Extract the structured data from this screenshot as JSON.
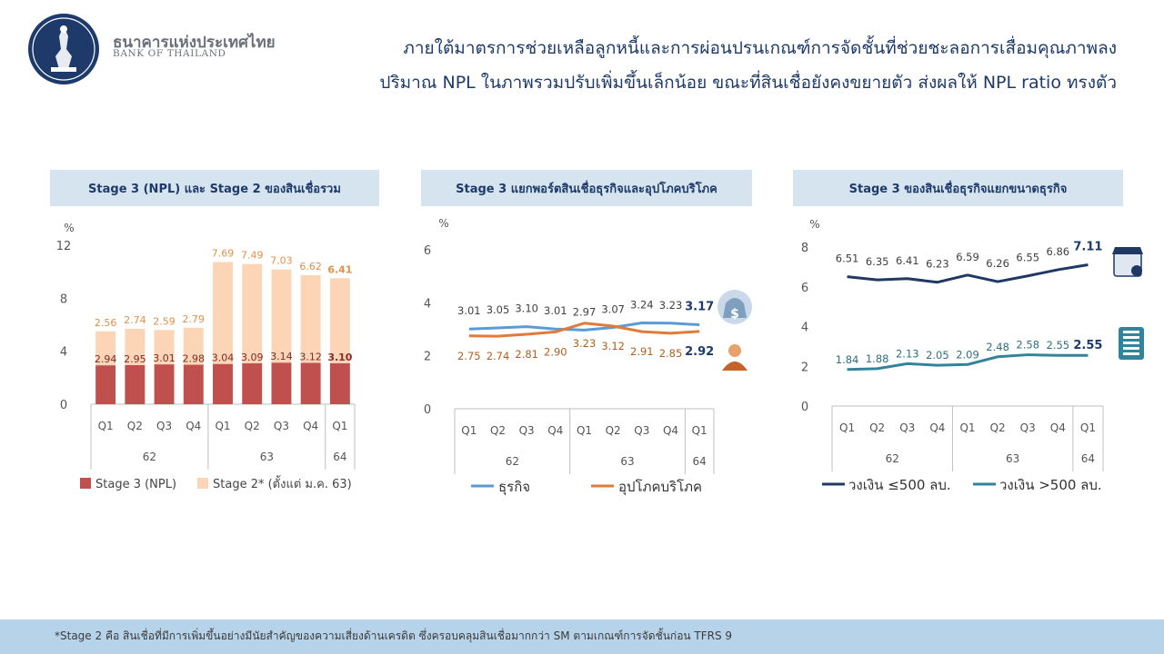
{
  "org": {
    "name_th": "ธนาคารแห่งประเทศไทย",
    "name_en": "BANK OF THAILAND"
  },
  "headline": {
    "line1": "ภายใต้มาตรการช่วยเหลือลูกหนี้และการผ่อนปรนเกณฑ์การจัดชั้นที่ช่วยชะลอการเสื่อมคุณภาพลง",
    "line2": "ปริมาณ NPL ในภาพรวมปรับเพิ่มขึ้นเล็กน้อย ขณะที่สินเชื่อยังคงขยายตัว ส่งผลให้ NPL ratio ทรงตัว"
  },
  "footnote": "*Stage 2 คือ สินเชื่อที่มีการเพิ่มขึ้นอย่างมีนัยสำคัญของความเสี่ยงด้านเครดิต  ซึ่งครอบคลุมสินเชื่อมากกว่า  SM ตามเกณฑ์การจัดชั้นก่อน  TFRS 9",
  "colors": {
    "navy": "#1d3a6b",
    "title_bg": "#d6e4f0",
    "npl_bar": "#c0504d",
    "stage2_bar": "#fbd5b5",
    "stage2_label": "#e0914a",
    "business_line": "#5b9bd5",
    "consumer_line": "#e07b39",
    "sme_line": "#1f3864",
    "large_line": "#31849b",
    "footer_bg": "#b7d3ea"
  },
  "chart_data": [
    {
      "type": "bar",
      "title": "Stage 3 (NPL) และ Stage 2 ของสินเชื่อรวม",
      "ylabel": "%",
      "ylim": [
        0,
        12
      ],
      "yticks": [
        0,
        4,
        8,
        12
      ],
      "categories": [
        "Q1",
        "Q2",
        "Q3",
        "Q4",
        "Q1",
        "Q2",
        "Q3",
        "Q4",
        "Q1"
      ],
      "year_groups": [
        {
          "label": "62",
          "count": 4
        },
        {
          "label": "63",
          "count": 4
        },
        {
          "label": "64",
          "count": 1
        }
      ],
      "stacked": true,
      "series": [
        {
          "name": "Stage 3 (NPL)",
          "color": "#c0504d",
          "values": [
            2.94,
            2.95,
            3.01,
            2.98,
            3.04,
            3.09,
            3.14,
            3.12,
            3.1
          ]
        },
        {
          "name": "Stage 2* (ตั้งแต่ ม.ค. 63)",
          "color": "#fbd5b5",
          "values": [
            2.56,
            2.74,
            2.59,
            2.79,
            7.69,
            7.49,
            7.03,
            6.62,
            6.41
          ]
        }
      ],
      "legend": "bottom"
    },
    {
      "type": "line",
      "title": "Stage 3 แยกพอร์ตสินเชื่อธุรกิจและอุปโภคบริโภค",
      "ylabel": "%",
      "ylim": [
        0,
        6
      ],
      "yticks": [
        0,
        2,
        4,
        6
      ],
      "categories": [
        "Q1",
        "Q2",
        "Q3",
        "Q4",
        "Q1",
        "Q2",
        "Q3",
        "Q4",
        "Q1"
      ],
      "year_groups": [
        {
          "label": "62",
          "count": 4
        },
        {
          "label": "63",
          "count": 4
        },
        {
          "label": "64",
          "count": 1
        }
      ],
      "series": [
        {
          "name": "ธุรกิจ",
          "color": "#5b9bd5",
          "icon": "money-bag-icon",
          "values": [
            3.01,
            3.05,
            3.1,
            3.01,
            2.97,
            3.07,
            3.24,
            3.23,
            3.17
          ]
        },
        {
          "name": "อุปโภคบริโภค",
          "color": "#e07b39",
          "icon": "person-icon",
          "values": [
            2.75,
            2.74,
            2.81,
            2.9,
            3.23,
            3.12,
            2.91,
            2.85,
            2.92
          ]
        }
      ],
      "legend": "bottom"
    },
    {
      "type": "line",
      "title": "Stage 3 ของสินเชื่อธุรกิจแยกขนาดธุรกิจ",
      "ylabel": "%",
      "ylim": [
        0,
        8
      ],
      "yticks": [
        0,
        2,
        4,
        6,
        8
      ],
      "categories": [
        "Q1",
        "Q2",
        "Q3",
        "Q4",
        "Q1",
        "Q2",
        "Q3",
        "Q4",
        "Q1"
      ],
      "year_groups": [
        {
          "label": "62",
          "count": 4
        },
        {
          "label": "63",
          "count": 4
        },
        {
          "label": "64",
          "count": 1
        }
      ],
      "series": [
        {
          "name": "วงเงิน ≤500 ลบ.",
          "color": "#1f3864",
          "icon": "shop-icon",
          "values": [
            6.51,
            6.35,
            6.41,
            6.23,
            6.59,
            6.26,
            6.55,
            6.86,
            7.11
          ]
        },
        {
          "name": "วงเงิน >500 ลบ.",
          "color": "#31849b",
          "icon": "building-icon",
          "values": [
            1.84,
            1.88,
            2.13,
            2.05,
            2.09,
            2.48,
            2.58,
            2.55,
            2.55
          ]
        }
      ],
      "legend": "bottom"
    }
  ]
}
